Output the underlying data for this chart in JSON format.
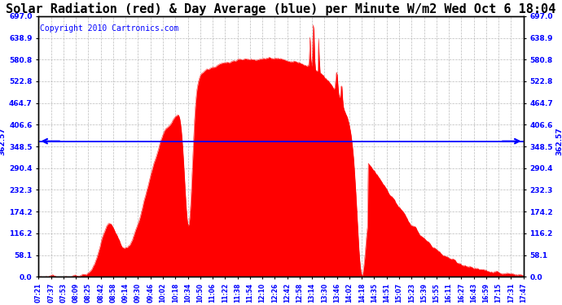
{
  "title": "Solar Radiation (red) & Day Average (blue) per Minute W/m2 Wed Oct 6 18:04",
  "copyright": "Copyright 2010 Cartronics.com",
  "avg_value": 362.57,
  "y_max": 697.0,
  "y_min": 0.0,
  "y_ticks": [
    0.0,
    58.1,
    116.2,
    174.2,
    232.3,
    290.4,
    348.5,
    406.6,
    464.7,
    522.8,
    580.8,
    638.9,
    697.0
  ],
  "x_labels": [
    "07:21",
    "07:37",
    "07:53",
    "08:09",
    "08:25",
    "08:42",
    "08:58",
    "09:14",
    "09:30",
    "09:46",
    "10:02",
    "10:18",
    "10:34",
    "10:50",
    "11:06",
    "11:22",
    "11:38",
    "11:54",
    "12:10",
    "12:26",
    "12:42",
    "12:58",
    "13:14",
    "13:30",
    "13:46",
    "14:02",
    "14:18",
    "14:35",
    "14:51",
    "15:07",
    "15:23",
    "15:39",
    "15:55",
    "16:11",
    "16:27",
    "16:43",
    "16:59",
    "17:15",
    "17:31",
    "17:47"
  ],
  "fill_color": "#FF0000",
  "line_color": "#0000FF",
  "bg_color": "#FFFFFF",
  "grid_color": "#AAAAAA",
  "title_fontsize": 11,
  "copyright_fontsize": 7
}
